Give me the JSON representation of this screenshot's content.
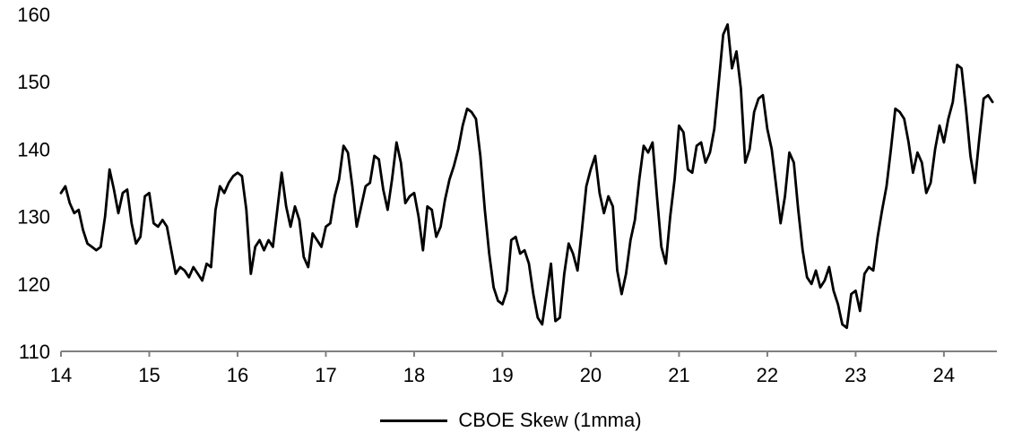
{
  "chart_data": {
    "type": "line",
    "title": "",
    "xlabel": "",
    "ylabel": "",
    "xlim": [
      14,
      24.6
    ],
    "ylim": [
      110,
      160
    ],
    "x_ticks": [
      14,
      15,
      16,
      17,
      18,
      19,
      20,
      21,
      22,
      23,
      24
    ],
    "y_ticks": [
      110,
      120,
      130,
      140,
      150,
      160
    ],
    "grid": false,
    "legend_position": "bottom-center",
    "axis_color": "#808080",
    "series": [
      {
        "name": "CBOE Skew (1mma)",
        "color": "#000000",
        "points": [
          [
            14.0,
            133.5
          ],
          [
            14.05,
            134.5
          ],
          [
            14.1,
            132
          ],
          [
            14.15,
            130.5
          ],
          [
            14.2,
            131
          ],
          [
            14.25,
            128
          ],
          [
            14.3,
            126
          ],
          [
            14.35,
            125.5
          ],
          [
            14.4,
            125
          ],
          [
            14.45,
            125.5
          ],
          [
            14.5,
            130
          ],
          [
            14.55,
            137
          ],
          [
            14.6,
            134
          ],
          [
            14.65,
            130.5
          ],
          [
            14.7,
            133.5
          ],
          [
            14.75,
            134
          ],
          [
            14.8,
            129
          ],
          [
            14.85,
            126
          ],
          [
            14.9,
            127
          ],
          [
            14.95,
            133
          ],
          [
            15.0,
            133.5
          ],
          [
            15.05,
            129
          ],
          [
            15.1,
            128.5
          ],
          [
            15.15,
            129.5
          ],
          [
            15.2,
            128.5
          ],
          [
            15.25,
            125
          ],
          [
            15.3,
            121.5
          ],
          [
            15.35,
            122.5
          ],
          [
            15.4,
            122
          ],
          [
            15.45,
            121
          ],
          [
            15.5,
            122.5
          ],
          [
            15.55,
            121.5
          ],
          [
            15.6,
            120.5
          ],
          [
            15.65,
            123
          ],
          [
            15.7,
            122.5
          ],
          [
            15.75,
            131
          ],
          [
            15.8,
            134.5
          ],
          [
            15.85,
            133.5
          ],
          [
            15.9,
            135
          ],
          [
            15.95,
            136
          ],
          [
            16.0,
            136.5
          ],
          [
            16.05,
            136
          ],
          [
            16.1,
            131
          ],
          [
            16.15,
            121.5
          ],
          [
            16.2,
            125.5
          ],
          [
            16.25,
            126.5
          ],
          [
            16.3,
            125
          ],
          [
            16.35,
            126.5
          ],
          [
            16.4,
            125.5
          ],
          [
            16.45,
            131
          ],
          [
            16.5,
            136.5
          ],
          [
            16.55,
            131.5
          ],
          [
            16.6,
            128.5
          ],
          [
            16.65,
            131.5
          ],
          [
            16.7,
            129.5
          ],
          [
            16.75,
            124
          ],
          [
            16.8,
            122.5
          ],
          [
            16.85,
            127.5
          ],
          [
            16.9,
            126.5
          ],
          [
            16.95,
            125.5
          ],
          [
            17.0,
            128.5
          ],
          [
            17.05,
            129
          ],
          [
            17.1,
            133
          ],
          [
            17.15,
            135.5
          ],
          [
            17.2,
            140.5
          ],
          [
            17.25,
            139.5
          ],
          [
            17.3,
            134.5
          ],
          [
            17.35,
            128.5
          ],
          [
            17.4,
            131.5
          ],
          [
            17.45,
            134.5
          ],
          [
            17.5,
            135
          ],
          [
            17.55,
            139
          ],
          [
            17.6,
            138.5
          ],
          [
            17.65,
            134
          ],
          [
            17.7,
            131
          ],
          [
            17.75,
            135.5
          ],
          [
            17.8,
            141
          ],
          [
            17.85,
            138
          ],
          [
            17.9,
            132
          ],
          [
            17.95,
            133
          ],
          [
            18.0,
            133.5
          ],
          [
            18.05,
            130
          ],
          [
            18.1,
            125
          ],
          [
            18.15,
            131.5
          ],
          [
            18.2,
            131
          ],
          [
            18.25,
            127
          ],
          [
            18.3,
            128.5
          ],
          [
            18.35,
            132.5
          ],
          [
            18.4,
            135.5
          ],
          [
            18.45,
            137.5
          ],
          [
            18.5,
            140
          ],
          [
            18.55,
            143.5
          ],
          [
            18.6,
            146
          ],
          [
            18.65,
            145.5
          ],
          [
            18.7,
            144.5
          ],
          [
            18.75,
            139
          ],
          [
            18.8,
            131
          ],
          [
            18.85,
            124.5
          ],
          [
            18.9,
            119.5
          ],
          [
            18.95,
            117.5
          ],
          [
            19.0,
            117
          ],
          [
            19.05,
            119
          ],
          [
            19.1,
            126.5
          ],
          [
            19.15,
            127
          ],
          [
            19.2,
            124.5
          ],
          [
            19.25,
            125
          ],
          [
            19.3,
            123
          ],
          [
            19.35,
            118.5
          ],
          [
            19.4,
            115
          ],
          [
            19.45,
            114
          ],
          [
            19.5,
            118.5
          ],
          [
            19.55,
            123
          ],
          [
            19.6,
            114.5
          ],
          [
            19.65,
            115
          ],
          [
            19.7,
            121.5
          ],
          [
            19.75,
            126
          ],
          [
            19.8,
            124.5
          ],
          [
            19.85,
            122
          ],
          [
            19.9,
            128
          ],
          [
            19.95,
            134.5
          ],
          [
            20.0,
            137
          ],
          [
            20.05,
            139
          ],
          [
            20.1,
            133.5
          ],
          [
            20.15,
            130.5
          ],
          [
            20.2,
            133
          ],
          [
            20.25,
            131.5
          ],
          [
            20.3,
            122
          ],
          [
            20.35,
            118.5
          ],
          [
            20.4,
            121.5
          ],
          [
            20.45,
            126.5
          ],
          [
            20.5,
            129.5
          ],
          [
            20.55,
            135.5
          ],
          [
            20.6,
            140.5
          ],
          [
            20.65,
            139.5
          ],
          [
            20.7,
            141
          ],
          [
            20.75,
            133
          ],
          [
            20.8,
            125.5
          ],
          [
            20.85,
            123
          ],
          [
            20.9,
            130
          ],
          [
            20.95,
            135.5
          ],
          [
            21.0,
            143.5
          ],
          [
            21.05,
            142.5
          ],
          [
            21.1,
            137
          ],
          [
            21.15,
            136.5
          ],
          [
            21.2,
            140.5
          ],
          [
            21.25,
            141
          ],
          [
            21.3,
            138
          ],
          [
            21.35,
            139.5
          ],
          [
            21.4,
            143
          ],
          [
            21.45,
            150
          ],
          [
            21.5,
            157
          ],
          [
            21.55,
            158.5
          ],
          [
            21.6,
            152
          ],
          [
            21.65,
            154.5
          ],
          [
            21.7,
            149
          ],
          [
            21.75,
            138
          ],
          [
            21.8,
            140
          ],
          [
            21.85,
            145.5
          ],
          [
            21.9,
            147.5
          ],
          [
            21.95,
            148
          ],
          [
            22.0,
            143
          ],
          [
            22.05,
            140
          ],
          [
            22.1,
            134.5
          ],
          [
            22.15,
            129
          ],
          [
            22.2,
            133
          ],
          [
            22.25,
            139.5
          ],
          [
            22.3,
            138
          ],
          [
            22.35,
            131
          ],
          [
            22.4,
            125
          ],
          [
            22.45,
            121
          ],
          [
            22.5,
            120
          ],
          [
            22.55,
            122
          ],
          [
            22.6,
            119.5
          ],
          [
            22.65,
            120.5
          ],
          [
            22.7,
            122.5
          ],
          [
            22.75,
            119
          ],
          [
            22.8,
            117
          ],
          [
            22.85,
            114
          ],
          [
            22.9,
            113.5
          ],
          [
            22.95,
            118.5
          ],
          [
            23.0,
            119
          ],
          [
            23.05,
            116
          ],
          [
            23.1,
            121.5
          ],
          [
            23.15,
            122.5
          ],
          [
            23.2,
            122
          ],
          [
            23.25,
            127
          ],
          [
            23.3,
            131
          ],
          [
            23.35,
            134.5
          ],
          [
            23.4,
            140
          ],
          [
            23.45,
            146
          ],
          [
            23.5,
            145.5
          ],
          [
            23.55,
            144.5
          ],
          [
            23.6,
            141
          ],
          [
            23.65,
            136.5
          ],
          [
            23.7,
            139.5
          ],
          [
            23.75,
            138
          ],
          [
            23.8,
            133.5
          ],
          [
            23.85,
            135
          ],
          [
            23.9,
            140
          ],
          [
            23.95,
            143.5
          ],
          [
            24.0,
            141
          ],
          [
            24.05,
            144.5
          ],
          [
            24.1,
            147
          ],
          [
            24.15,
            152.5
          ],
          [
            24.2,
            152
          ],
          [
            24.25,
            146
          ],
          [
            24.3,
            139
          ],
          [
            24.35,
            135
          ],
          [
            24.4,
            141.5
          ],
          [
            24.45,
            147.5
          ],
          [
            24.5,
            148
          ],
          [
            24.55,
            147
          ]
        ]
      }
    ]
  }
}
